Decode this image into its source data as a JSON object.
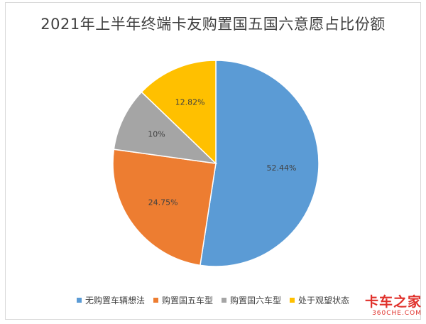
{
  "chart_data": {
    "type": "pie",
    "title": "2021年上半年终端卡友购置国五国六意愿占比份额",
    "slices": [
      {
        "label": "无购置车辆想法",
        "value": 52.44,
        "value_label": "52.44%",
        "color": "#5b9bd5"
      },
      {
        "label": "购置国五车型",
        "value": 24.75,
        "value_label": "24.75%",
        "color": "#ed7d31"
      },
      {
        "label": "购置国六车型",
        "value": 10,
        "value_label": "10%",
        "color": "#a5a5a5"
      },
      {
        "label": "处于观望状态",
        "value": 12.82,
        "value_label": "12.82%",
        "color": "#ffc000"
      }
    ],
    "legend": "bottom"
  },
  "watermark": {
    "text": "卡车之家",
    "sub": "360CHE.COM"
  }
}
